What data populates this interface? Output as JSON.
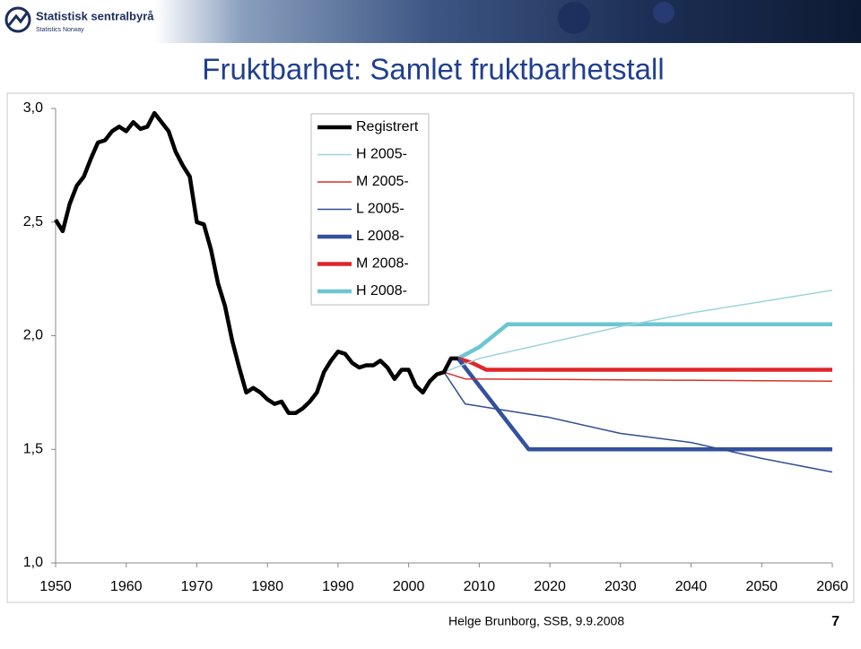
{
  "header": {
    "logo_name": "Statistisk sentralbyrå",
    "logo_sub": "Statistics Norway"
  },
  "chart_data": {
    "type": "line",
    "title": "Fruktbarhet: Samlet fruktbarhetstall",
    "xlim": [
      1950,
      2060
    ],
    "xticks": [
      1950,
      1960,
      1970,
      1980,
      1990,
      2000,
      2010,
      2020,
      2030,
      2040,
      2050,
      2060
    ],
    "ylim": [
      1,
      3
    ],
    "yticks": [
      {
        "value": 1,
        "label": "1,0"
      },
      {
        "value": 1.5,
        "label": "1,5"
      },
      {
        "value": 2,
        "label": "2,0"
      },
      {
        "value": 2.5,
        "label": "2,5"
      },
      {
        "value": 3,
        "label": "3,0"
      }
    ],
    "grid": false,
    "series": [
      {
        "name": "Registrert",
        "color": "#000000",
        "width": 4.5,
        "x": [
          1950,
          1951,
          1952,
          1953,
          1954,
          1955,
          1956,
          1957,
          1958,
          1959,
          1960,
          1961,
          1962,
          1963,
          1964,
          1965,
          1966,
          1967,
          1968,
          1969,
          1970,
          1971,
          1972,
          1973,
          1974,
          1975,
          1976,
          1977,
          1978,
          1979,
          1980,
          1981,
          1982,
          1983,
          1984,
          1985,
          1986,
          1987,
          1988,
          1989,
          1990,
          1991,
          1992,
          1993,
          1994,
          1995,
          1996,
          1997,
          1998,
          1999,
          2000,
          2001,
          2002,
          2003,
          2004,
          2005,
          2006,
          2007
        ],
        "values": [
          2.51,
          2.46,
          2.58,
          2.66,
          2.7,
          2.78,
          2.85,
          2.86,
          2.9,
          2.92,
          2.9,
          2.94,
          2.91,
          2.92,
          2.98,
          2.94,
          2.9,
          2.81,
          2.75,
          2.7,
          2.5,
          2.49,
          2.38,
          2.23,
          2.13,
          1.98,
          1.86,
          1.75,
          1.77,
          1.75,
          1.72,
          1.7,
          1.71,
          1.66,
          1.66,
          1.68,
          1.71,
          1.75,
          1.84,
          1.89,
          1.93,
          1.92,
          1.88,
          1.86,
          1.87,
          1.87,
          1.89,
          1.86,
          1.81,
          1.85,
          1.85,
          1.78,
          1.75,
          1.8,
          1.83,
          1.84,
          1.9,
          1.9
        ]
      },
      {
        "name": "H 2005-",
        "color": "#9fd4dc",
        "width": 1.5,
        "x": [
          2005,
          2010,
          2020,
          2030,
          2040,
          2050,
          2060
        ],
        "values": [
          1.84,
          1.9,
          1.97,
          2.04,
          2.1,
          2.15,
          2.2
        ]
      },
      {
        "name": "M 2005-",
        "color": "#d9302a",
        "width": 1.5,
        "x": [
          2005,
          2008,
          2060
        ],
        "values": [
          1.84,
          1.81,
          1.8
        ]
      },
      {
        "name": "L 2005-",
        "color": "#2f4f8f",
        "width": 1.5,
        "x": [
          2005,
          2008,
          2020,
          2030,
          2040,
          2050,
          2060
        ],
        "values": [
          1.84,
          1.7,
          1.64,
          1.57,
          1.53,
          1.46,
          1.4
        ]
      },
      {
        "name": "L 2008-",
        "color": "#34509e",
        "width": 4.5,
        "x": [
          2007,
          2017,
          2060
        ],
        "values": [
          1.9,
          1.5,
          1.5
        ]
      },
      {
        "name": "M 2008-",
        "color": "#e0262a",
        "width": 4.5,
        "x": [
          2007,
          2009,
          2011,
          2060
        ],
        "values": [
          1.9,
          1.88,
          1.85,
          1.85
        ]
      },
      {
        "name": "H 2008-",
        "color": "#6cc6d2",
        "width": 4.5,
        "x": [
          2007,
          2010,
          2014,
          2060
        ],
        "values": [
          1.9,
          1.95,
          2.05,
          2.05
        ]
      }
    ]
  },
  "footer": {
    "author": "Helge Brunborg, SSB, 9.9.2008",
    "page": "7"
  }
}
